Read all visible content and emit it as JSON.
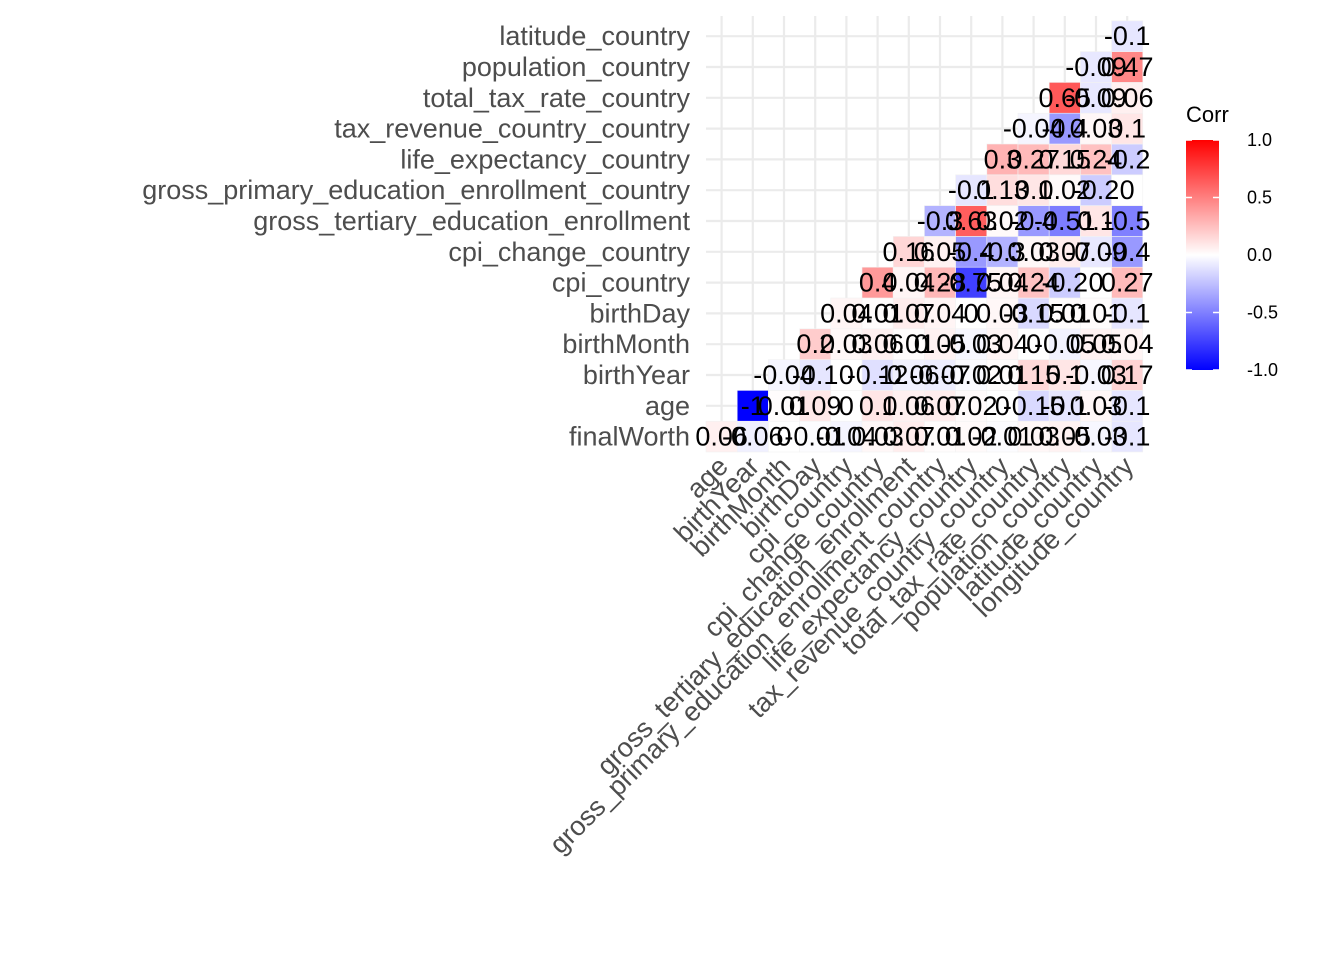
{
  "chart_data": {
    "type": "heatmap",
    "title": "",
    "xlabel": "",
    "ylabel": "",
    "variables": [
      "finalWorth",
      "age",
      "birthYear",
      "birthMonth",
      "birthDay",
      "cpi_country",
      "cpi_change_country",
      "gross_tertiary_education_enrollment",
      "gross_primary_education_enrollment_country",
      "life_expectancy_country",
      "tax_revenue_country_country",
      "total_tax_rate_country",
      "population_country",
      "latitude_country",
      "longitude_country"
    ],
    "x_labels": [
      "age",
      "birthYear",
      "birthMonth",
      "birthDay",
      "cpi_country",
      "cpi_change_country",
      "gross_tertiary_education_enrollment",
      "gross_primary_education_enrollment_country",
      "life_expectancy_country",
      "tax_revenue_country_country",
      "total_tax_rate_country",
      "population_country",
      "latitude_country",
      "longitude_country"
    ],
    "y_labels": [
      "finalWorth",
      "age",
      "birthYear",
      "birthMonth",
      "birthDay",
      "cpi_country",
      "cpi_change_country",
      "gross_tertiary_education_enrollment",
      "gross_primary_education_enrollment_country",
      "life_expectancy_country",
      "tax_revenue_country_country",
      "total_tax_rate_country",
      "population_country",
      "latitude_country"
    ],
    "cells": [
      {
        "x": "age",
        "y": "finalWorth",
        "value": 0.06,
        "label": "0.06"
      },
      {
        "x": "birthYear",
        "y": "finalWorth",
        "value": -0.06,
        "label": "-0.06"
      },
      {
        "x": "birthMonth",
        "y": "finalWorth",
        "value": 0,
        "label": "0"
      },
      {
        "x": "birthDay",
        "y": "finalWorth",
        "value": -0.01,
        "label": "-0.01"
      },
      {
        "x": "cpi_country",
        "y": "finalWorth",
        "value": -0.04,
        "label": "-0.04"
      },
      {
        "x": "cpi_change_country",
        "y": "finalWorth",
        "value": 0.03,
        "label": "0.03"
      },
      {
        "x": "gross_tertiary_education_enrollment",
        "y": "finalWorth",
        "value": 0.07,
        "label": "0.07"
      },
      {
        "x": "gross_primary_education_enrollment_country",
        "y": "finalWorth",
        "value": 0.01,
        "label": "0.01"
      },
      {
        "x": "life_expectancy_country",
        "y": "finalWorth",
        "value": 0.02,
        "label": "0.02"
      },
      {
        "x": "tax_revenue_country_country",
        "y": "finalWorth",
        "value": -0.01,
        "label": "-0.01"
      },
      {
        "x": "total_tax_rate_country",
        "y": "finalWorth",
        "value": 0.03,
        "label": "0.03"
      },
      {
        "x": "population_country",
        "y": "finalWorth",
        "value": 0.05,
        "label": "0.05"
      },
      {
        "x": "latitude_country",
        "y": "finalWorth",
        "value": -0.03,
        "label": "-0.03"
      },
      {
        "x": "longitude_country",
        "y": "finalWorth",
        "value": -0.1,
        "label": "-0.1"
      },
      {
        "x": "birthYear",
        "y": "age",
        "value": -1,
        "label": "-1"
      },
      {
        "x": "birthMonth",
        "y": "age",
        "value": 0.01,
        "label": "0.01"
      },
      {
        "x": "birthDay",
        "y": "age",
        "value": 0.09,
        "label": "0.09"
      },
      {
        "x": "cpi_country",
        "y": "age",
        "value": 0,
        "label": "0"
      },
      {
        "x": "cpi_change_country",
        "y": "age",
        "value": 0.1,
        "label": "0.1"
      },
      {
        "x": "gross_tertiary_education_enrollment",
        "y": "age",
        "value": 0.06,
        "label": "0.06"
      },
      {
        "x": "gross_primary_education_enrollment_country",
        "y": "age",
        "value": 0.07,
        "label": "0.07"
      },
      {
        "x": "life_expectancy_country",
        "y": "age",
        "value": 0.02,
        "label": "0.02"
      },
      {
        "x": "tax_revenue_country_country",
        "y": "age",
        "value": 0,
        "label": "0"
      },
      {
        "x": "total_tax_rate_country",
        "y": "age",
        "value": -0.15,
        "label": "-0.15"
      },
      {
        "x": "population_country",
        "y": "age",
        "value": -0.1,
        "label": "-0.1"
      },
      {
        "x": "latitude_country",
        "y": "age",
        "value": 0.03,
        "label": "0.03"
      },
      {
        "x": "longitude_country",
        "y": "age",
        "value": -0.1,
        "label": "-0.1"
      },
      {
        "x": "birthMonth",
        "y": "birthYear",
        "value": -0.04,
        "label": "-0.04"
      },
      {
        "x": "birthDay",
        "y": "birthYear",
        "value": -0.1,
        "label": "-0.1"
      },
      {
        "x": "cpi_country",
        "y": "birthYear",
        "value": 0,
        "label": "0"
      },
      {
        "x": "cpi_change_country",
        "y": "birthYear",
        "value": -0.12,
        "label": "-0.12"
      },
      {
        "x": "gross_tertiary_education_enrollment",
        "y": "birthYear",
        "value": -0.06,
        "label": "-0.06"
      },
      {
        "x": "gross_primary_education_enrollment_country",
        "y": "birthYear",
        "value": -0.07,
        "label": "-0.07"
      },
      {
        "x": "life_expectancy_country",
        "y": "birthYear",
        "value": -0.02,
        "label": "-0.02"
      },
      {
        "x": "tax_revenue_country_country",
        "y": "birthYear",
        "value": 0.01,
        "label": "0.01"
      },
      {
        "x": "total_tax_rate_country",
        "y": "birthYear",
        "value": 0.15,
        "label": "0.15"
      },
      {
        "x": "population_country",
        "y": "birthYear",
        "value": 0.1,
        "label": "0.1"
      },
      {
        "x": "latitude_country",
        "y": "birthYear",
        "value": -0.03,
        "label": "-0.03"
      },
      {
        "x": "longitude_country",
        "y": "birthYear",
        "value": 0.17,
        "label": "0.17"
      },
      {
        "x": "birthDay",
        "y": "birthMonth",
        "value": 0.2,
        "label": "0.2"
      },
      {
        "x": "cpi_country",
        "y": "birthMonth",
        "value": 0.03,
        "label": "0.03"
      },
      {
        "x": "cpi_change_country",
        "y": "birthMonth",
        "value": 0.06,
        "label": "0.06"
      },
      {
        "x": "gross_tertiary_education_enrollment",
        "y": "birthMonth",
        "value": 0.01,
        "label": "0.01"
      },
      {
        "x": "gross_primary_education_enrollment_country",
        "y": "birthMonth",
        "value": 0.05,
        "label": "0.05"
      },
      {
        "x": "life_expectancy_country",
        "y": "birthMonth",
        "value": -0.03,
        "label": "-0.03"
      },
      {
        "x": "tax_revenue_country_country",
        "y": "birthMonth",
        "value": 0.04,
        "label": "0.04"
      },
      {
        "x": "total_tax_rate_country",
        "y": "birthMonth",
        "value": 0,
        "label": "0"
      },
      {
        "x": "population_country",
        "y": "birthMonth",
        "value": -0.05,
        "label": "-0.05"
      },
      {
        "x": "latitude_country",
        "y": "birthMonth",
        "value": 0.05,
        "label": "0.05"
      },
      {
        "x": "longitude_country",
        "y": "birthMonth",
        "value": 0.04,
        "label": "0.04"
      },
      {
        "x": "cpi_country",
        "y": "birthDay",
        "value": 0.04,
        "label": "0.04"
      },
      {
        "x": "cpi_change_country",
        "y": "birthDay",
        "value": 0.01,
        "label": "0.01"
      },
      {
        "x": "gross_tertiary_education_enrollment",
        "y": "birthDay",
        "value": 0.07,
        "label": "0.07"
      },
      {
        "x": "gross_primary_education_enrollment_country",
        "y": "birthDay",
        "value": 0.04,
        "label": "0.04"
      },
      {
        "x": "life_expectancy_country",
        "y": "birthDay",
        "value": 0,
        "label": "0"
      },
      {
        "x": "tax_revenue_country_country",
        "y": "birthDay",
        "value": 0.03,
        "label": "0.03"
      },
      {
        "x": "total_tax_rate_country",
        "y": "birthDay",
        "value": -0.15,
        "label": "-0.15"
      },
      {
        "x": "population_country",
        "y": "birthDay",
        "value": 0.01,
        "label": "0.01"
      },
      {
        "x": "latitude_country",
        "y": "birthDay",
        "value": 0.01,
        "label": "0.01"
      },
      {
        "x": "longitude_country",
        "y": "birthDay",
        "value": -0.1,
        "label": "-0.1"
      },
      {
        "x": "cpi_change_country",
        "y": "cpi_country",
        "value": 0.4,
        "label": "0.4"
      },
      {
        "x": "gross_tertiary_education_enrollment",
        "y": "cpi_country",
        "value": 0.04,
        "label": "0.04"
      },
      {
        "x": "gross_primary_education_enrollment_country",
        "y": "cpi_country",
        "value": 0.28,
        "label": "0.28"
      },
      {
        "x": "life_expectancy_country",
        "y": "cpi_country",
        "value": -0.75,
        "label": "-0.75"
      },
      {
        "x": "tax_revenue_country_country",
        "y": "cpi_country",
        "value": 0.04,
        "label": "0.04"
      },
      {
        "x": "total_tax_rate_country",
        "y": "cpi_country",
        "value": 0.24,
        "label": "0.24"
      },
      {
        "x": "population_country",
        "y": "cpi_country",
        "value": -0.2,
        "label": "-0.2"
      },
      {
        "x": "latitude_country",
        "y": "cpi_country",
        "value": 0,
        "label": "0"
      },
      {
        "x": "longitude_country",
        "y": "cpi_country",
        "value": 0.27,
        "label": "0.27"
      },
      {
        "x": "gross_tertiary_education_enrollment",
        "y": "cpi_change_country",
        "value": 0.16,
        "label": "0.16"
      },
      {
        "x": "gross_primary_education_enrollment_country",
        "y": "cpi_change_country",
        "value": 0.05,
        "label": "0.05"
      },
      {
        "x": "life_expectancy_country",
        "y": "cpi_change_country",
        "value": -0.4,
        "label": "-0.4"
      },
      {
        "x": "tax_revenue_country_country",
        "y": "cpi_change_country",
        "value": -0.3,
        "label": "-0.3"
      },
      {
        "x": "total_tax_rate_country",
        "y": "cpi_change_country",
        "value": 0.03,
        "label": "0.03"
      },
      {
        "x": "population_country",
        "y": "cpi_change_country",
        "value": 0.07,
        "label": "0.07"
      },
      {
        "x": "latitude_country",
        "y": "cpi_change_country",
        "value": -0.09,
        "label": "-0.09"
      },
      {
        "x": "longitude_country",
        "y": "cpi_change_country",
        "value": -0.4,
        "label": "-0.4"
      },
      {
        "x": "gross_primary_education_enrollment_country",
        "y": "gross_tertiary_education_enrollment",
        "value": -0.3,
        "label": "-0.3"
      },
      {
        "x": "life_expectancy_country",
        "y": "gross_tertiary_education_enrollment",
        "value": 0.63,
        "label": "0.63"
      },
      {
        "x": "tax_revenue_country_country",
        "y": "gross_tertiary_education_enrollment",
        "value": 0.02,
        "label": "0.02"
      },
      {
        "x": "total_tax_rate_country",
        "y": "gross_tertiary_education_enrollment",
        "value": -0.4,
        "label": "-0.4"
      },
      {
        "x": "population_country",
        "y": "gross_tertiary_education_enrollment",
        "value": -0.51,
        "label": "-0.51"
      },
      {
        "x": "latitude_country",
        "y": "gross_tertiary_education_enrollment",
        "value": 0.1,
        "label": "0.1"
      },
      {
        "x": "longitude_country",
        "y": "gross_tertiary_education_enrollment",
        "value": -0.5,
        "label": "-0.5"
      },
      {
        "x": "life_expectancy_country",
        "y": "gross_primary_education_enrollment_country",
        "value": -0.1,
        "label": "-0.1"
      },
      {
        "x": "tax_revenue_country_country",
        "y": "gross_primary_education_enrollment_country",
        "value": 0.13,
        "label": "0.13"
      },
      {
        "x": "total_tax_rate_country",
        "y": "gross_primary_education_enrollment_country",
        "value": 0.1,
        "label": "0.1"
      },
      {
        "x": "population_country",
        "y": "gross_primary_education_enrollment_country",
        "value": 0.02,
        "label": "0.02"
      },
      {
        "x": "latitude_country",
        "y": "gross_primary_education_enrollment_country",
        "value": -0.2,
        "label": "-0.2"
      },
      {
        "x": "longitude_country",
        "y": "gross_primary_education_enrollment_country",
        "value": 0,
        "label": "0"
      },
      {
        "x": "tax_revenue_country_country",
        "y": "life_expectancy_country",
        "value": 0.3,
        "label": "0.3"
      },
      {
        "x": "total_tax_rate_country",
        "y": "life_expectancy_country",
        "value": 0.27,
        "label": "0.27"
      },
      {
        "x": "population_country",
        "y": "life_expectancy_country",
        "value": 0.15,
        "label": "0.15"
      },
      {
        "x": "latitude_country",
        "y": "life_expectancy_country",
        "value": 0.24,
        "label": "0.24"
      },
      {
        "x": "longitude_country",
        "y": "life_expectancy_country",
        "value": -0.2,
        "label": "-0.2"
      },
      {
        "x": "total_tax_rate_country",
        "y": "tax_revenue_country_country",
        "value": -0.04,
        "label": "-0.04"
      },
      {
        "x": "population_country",
        "y": "tax_revenue_country_country",
        "value": -0.4,
        "label": "-0.4"
      },
      {
        "x": "latitude_country",
        "y": "tax_revenue_country_country",
        "value": 0.03,
        "label": "0.03"
      },
      {
        "x": "longitude_country",
        "y": "tax_revenue_country_country",
        "value": 0.1,
        "label": "0.1"
      },
      {
        "x": "population_country",
        "y": "total_tax_rate_country",
        "value": 0.65,
        "label": "0.65"
      },
      {
        "x": "latitude_country",
        "y": "total_tax_rate_country",
        "value": -0.09,
        "label": "-0.09"
      },
      {
        "x": "longitude_country",
        "y": "total_tax_rate_country",
        "value": 0.06,
        "label": "0.06"
      },
      {
        "x": "latitude_country",
        "y": "population_country",
        "value": -0.09,
        "label": "-0.09"
      },
      {
        "x": "longitude_country",
        "y": "population_country",
        "value": 0.47,
        "label": "0.47"
      },
      {
        "x": "longitude_country",
        "y": "latitude_country",
        "value": -0.1,
        "label": "-0.1"
      }
    ],
    "color_scale": {
      "low": "#0000ff",
      "mid": "#ffffff",
      "high": "#ff0000",
      "domain": [
        -1,
        1
      ]
    },
    "legend": {
      "title": "Corr",
      "ticks": [
        "1.0",
        "0.5",
        "0.0",
        "-0.5",
        "-1.0"
      ],
      "position": "right"
    },
    "grid": true
  }
}
